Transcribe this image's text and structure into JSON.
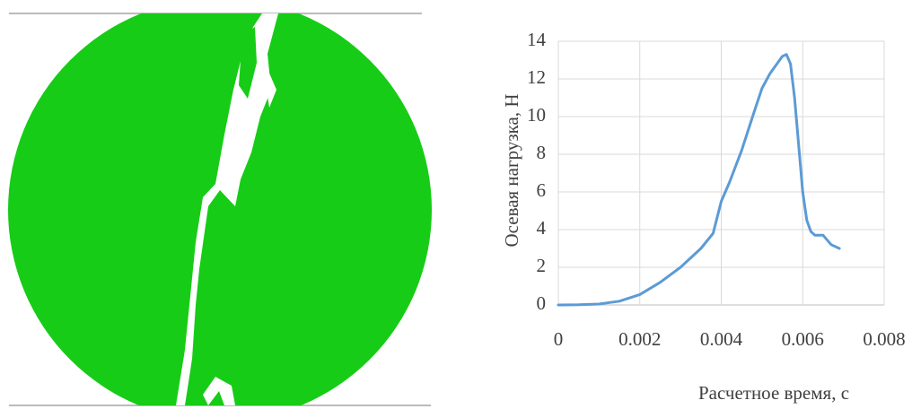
{
  "chart_data": {
    "type": "line",
    "x_label": "Расчетное время, с",
    "y_label": "Осевая нагрузка, Н",
    "x": [
      0,
      0.0005,
      0.001,
      0.0015,
      0.002,
      0.0025,
      0.003,
      0.0035,
      0.0038,
      0.004,
      0.0042,
      0.0045,
      0.0048,
      0.005,
      0.0052,
      0.0054,
      0.0055,
      0.0056,
      0.0057,
      0.0058,
      0.0059,
      0.006,
      0.0061,
      0.0062,
      0.0063,
      0.0065,
      0.0067,
      0.0069
    ],
    "series": [
      {
        "color": "#5b9bd5",
        "values": [
          0,
          0.01,
          0.05,
          0.2,
          0.55,
          1.2,
          2.0,
          3.0,
          3.8,
          5.5,
          6.5,
          8.2,
          10.2,
          11.5,
          12.3,
          12.9,
          13.2,
          13.3,
          12.8,
          11.0,
          8.5,
          6.0,
          4.5,
          3.9,
          3.7,
          3.7,
          3.2,
          3.0
        ]
      }
    ],
    "xlim": [
      0,
      0.008
    ],
    "xticks": [
      0,
      0.002,
      0.004,
      0.006,
      0.008
    ],
    "ylim": [
      0,
      14
    ],
    "yticks": [
      0,
      2,
      4,
      6,
      8,
      10,
      12,
      14
    ],
    "grid": true
  }
}
